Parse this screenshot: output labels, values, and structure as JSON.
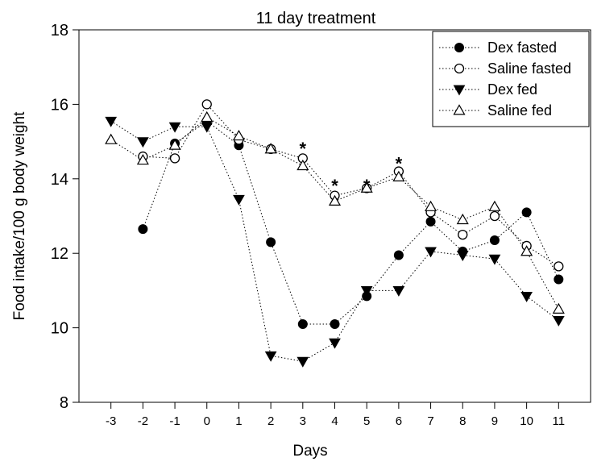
{
  "chart_data": {
    "type": "line",
    "title": "11 day treatment",
    "xlabel": "Days",
    "ylabel": "Food intake/100 g body weight",
    "x": [
      -3,
      -2,
      -1,
      0,
      1,
      2,
      3,
      4,
      5,
      6,
      7,
      8,
      9,
      10,
      11
    ],
    "xlim": [
      -4,
      12
    ],
    "ylim": [
      8,
      18
    ],
    "yticks": [
      8,
      10,
      12,
      14,
      16,
      18
    ],
    "grid": false,
    "legend_position": "top-right",
    "series": [
      {
        "name": "Dex fasted",
        "marker": "filled-circle",
        "color": "#000000",
        "values": [
          null,
          12.65,
          14.95,
          15.55,
          14.9,
          12.3,
          10.1,
          10.1,
          10.85,
          11.95,
          12.85,
          12.05,
          12.35,
          13.1,
          11.3
        ]
      },
      {
        "name": "Saline fasted",
        "marker": "open-circle",
        "color": "#000000",
        "values": [
          null,
          14.6,
          14.55,
          16.0,
          15.05,
          14.8,
          14.55,
          13.55,
          13.75,
          14.2,
          13.1,
          12.5,
          13.0,
          12.2,
          11.65
        ]
      },
      {
        "name": "Dex fed",
        "marker": "filled-triangle-down",
        "color": "#000000",
        "values": [
          15.55,
          15.0,
          15.4,
          15.4,
          13.45,
          9.25,
          9.1,
          9.6,
          11.0,
          11.0,
          12.05,
          11.95,
          11.85,
          10.85,
          10.2
        ]
      },
      {
        "name": "Saline fed",
        "marker": "open-triangle-up",
        "color": "#000000",
        "values": [
          15.05,
          14.5,
          14.9,
          15.65,
          15.15,
          14.8,
          14.35,
          13.4,
          13.75,
          14.05,
          13.25,
          12.9,
          13.25,
          12.05,
          10.5
        ]
      }
    ],
    "annotations": [
      {
        "text": "*",
        "x": 3,
        "y": 14.95
      },
      {
        "text": "*",
        "x": 4,
        "y": 13.95
      },
      {
        "text": "*",
        "x": 5,
        "y": 13.95
      },
      {
        "text": "*",
        "x": 6,
        "y": 14.55
      }
    ]
  }
}
